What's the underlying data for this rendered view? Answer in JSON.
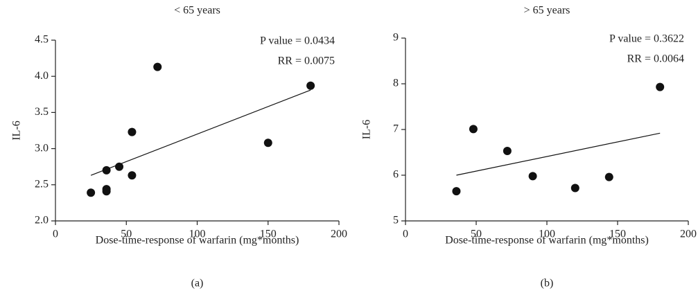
{
  "chart_data": [
    {
      "type": "scatter",
      "title": "< 65 years",
      "ylabel": "IL-6",
      "xlabel": "Dose-time-response of warfarin (mg*months)",
      "caption": "(a)",
      "annotations": [
        "P value = 0.0434",
        "RR = 0.0075"
      ],
      "x": [
        25,
        36,
        36,
        36,
        45,
        54,
        54,
        72,
        150,
        180
      ],
      "values": [
        2.39,
        2.44,
        2.41,
        2.7,
        2.75,
        2.63,
        3.23,
        4.13,
        3.08,
        3.87
      ],
      "color": "#111111",
      "fit": {
        "x": [
          25,
          180
        ],
        "values": [
          2.63,
          3.81
        ]
      },
      "xlim": [
        0,
        200
      ],
      "xticks": [
        0,
        50,
        100,
        150,
        200
      ],
      "ylim": [
        2,
        4.5
      ],
      "yticks": [
        {
          "value": 2,
          "label": "2.0"
        },
        2.5,
        {
          "value": 3,
          "label": "3.0"
        },
        3.5,
        {
          "value": 4,
          "label": "4.0"
        },
        4.5
      ]
    },
    {
      "type": "scatter",
      "title": "> 65 years",
      "ylabel": "IL-6",
      "xlabel": "Dose-time-response of warfarin (mg*months)",
      "caption": "(b)",
      "annotations": [
        "P value = 0.3622",
        "RR = 0.0064"
      ],
      "x": [
        36,
        48,
        72,
        90,
        120,
        144,
        180
      ],
      "values": [
        5.65,
        7.01,
        6.53,
        5.98,
        5.72,
        5.96,
        7.93
      ],
      "color": "#111111",
      "fit": {
        "x": [
          36,
          180
        ],
        "values": [
          6.0,
          6.92
        ]
      },
      "xlim": [
        0,
        200
      ],
      "xticks": [
        0,
        50,
        100,
        150,
        200
      ],
      "ylim": [
        5,
        9
      ],
      "yticks": [
        5,
        6,
        7,
        8,
        9
      ]
    }
  ]
}
